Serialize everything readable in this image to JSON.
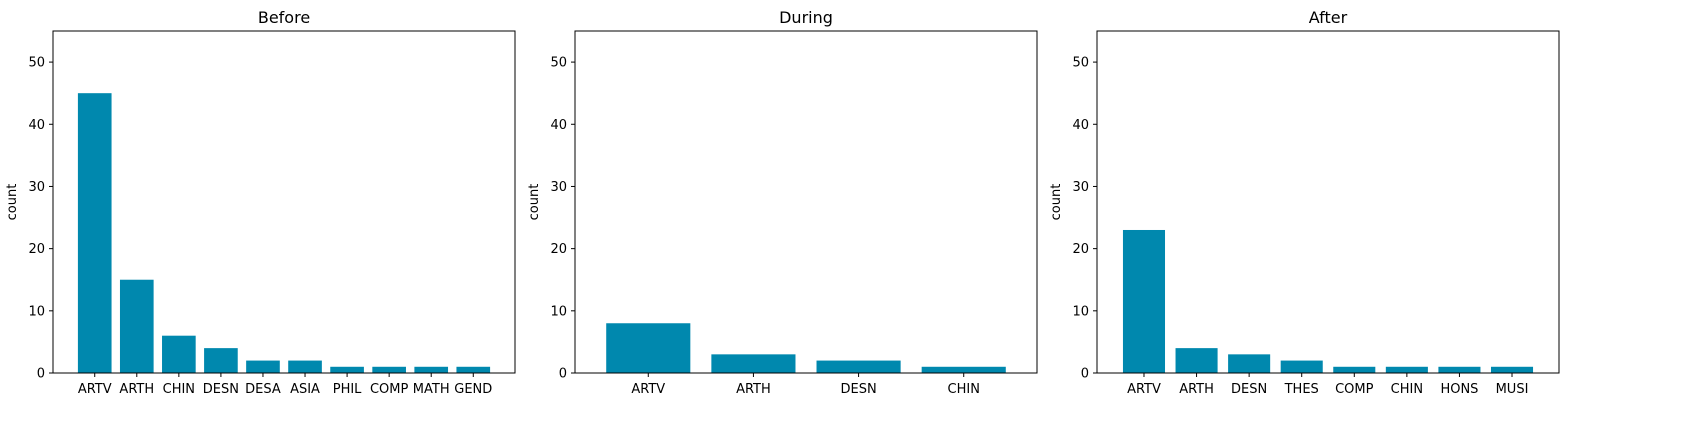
{
  "chart_data": [
    {
      "type": "bar",
      "title": "Before",
      "xlabel": "",
      "ylabel": "count",
      "ylim": [
        0,
        55
      ],
      "yticks": [
        0,
        10,
        20,
        30,
        40,
        50
      ],
      "categories": [
        "ARTV",
        "ARTH",
        "CHIN",
        "DESN",
        "DESA",
        "ASIA",
        "PHIL",
        "COMP",
        "MATH",
        "GEND"
      ],
      "values": [
        45,
        15,
        6,
        4,
        2,
        2,
        1,
        1,
        1,
        1
      ],
      "color": "#0088ae",
      "grid": false
    },
    {
      "type": "bar",
      "title": "During",
      "xlabel": "",
      "ylabel": "count",
      "ylim": [
        0,
        55
      ],
      "yticks": [
        0,
        10,
        20,
        30,
        40,
        50
      ],
      "categories": [
        "ARTV",
        "ARTH",
        "DESN",
        "CHIN"
      ],
      "values": [
        8,
        3,
        2,
        1
      ],
      "color": "#0088ae",
      "grid": false
    },
    {
      "type": "bar",
      "title": "After",
      "xlabel": "",
      "ylabel": "count",
      "ylim": [
        0,
        55
      ],
      "yticks": [
        0,
        10,
        20,
        30,
        40,
        50
      ],
      "categories": [
        "ARTV",
        "ARTH",
        "DESN",
        "THES",
        "COMP",
        "CHIN",
        "HONS",
        "MUSI"
      ],
      "values": [
        23,
        4,
        3,
        2,
        1,
        1,
        1,
        1
      ],
      "color": "#0088ae",
      "grid": false
    }
  ]
}
